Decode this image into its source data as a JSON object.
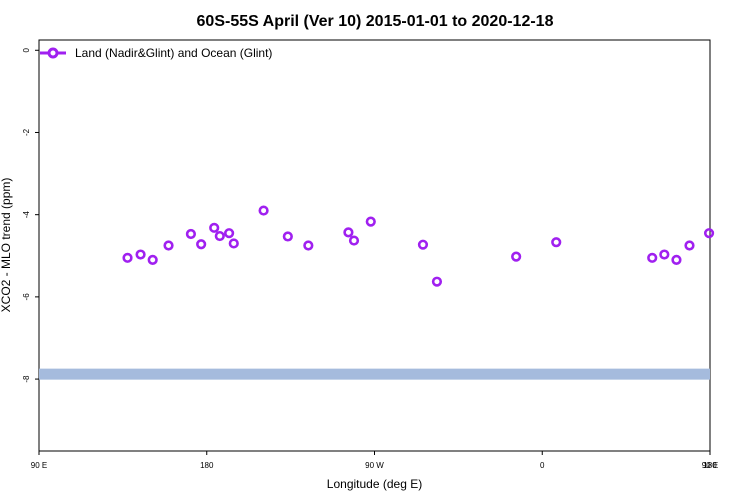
{
  "chart_data": {
    "type": "scatter",
    "title": "60S-55S April (Ver 10)   2015-01-01 to 2020-12-18",
    "xlabel": "Longitude (deg E)",
    "ylabel": "XCO2 - MLO trend (ppm)",
    "xlim": [
      90,
      450
    ],
    "ylim": [
      -9.75,
      0.25
    ],
    "x_ticks": [
      {
        "value": 90,
        "label": "90 E"
      },
      {
        "value": 180,
        "label": "180"
      },
      {
        "value": 270,
        "label": "90 W"
      },
      {
        "value": 360,
        "label": "0"
      },
      {
        "value": 450,
        "label": "90 E"
      }
    ],
    "x_ticks_extra": [
      {
        "value": 540,
        "label": "180"
      }
    ],
    "y_ticks": [
      0,
      -2,
      -4,
      -6,
      -8
    ],
    "grid": false,
    "legend": {
      "placement": "top-left",
      "entries": [
        "Land (Nadir&Glint) and Ocean (Glint)"
      ]
    },
    "series": [
      {
        "name": "Land (Nadir&Glint) and Ocean (Glint)",
        "color": "#a020f0",
        "points": [
          {
            "x": 137.5,
            "y": -5.05
          },
          {
            "x": 144.5,
            "y": -4.97
          },
          {
            "x": 151.0,
            "y": -5.1
          },
          {
            "x": 159.5,
            "y": -4.75
          },
          {
            "x": 171.5,
            "y": -4.47
          },
          {
            "x": 177.0,
            "y": -4.72
          },
          {
            "x": 184.0,
            "y": -4.32
          },
          {
            "x": 187.0,
            "y": -4.52
          },
          {
            "x": 192.0,
            "y": -4.45
          },
          {
            "x": 194.5,
            "y": -4.7
          },
          {
            "x": 210.5,
            "y": -3.9
          },
          {
            "x": 223.5,
            "y": -4.53
          },
          {
            "x": 234.5,
            "y": -4.75
          },
          {
            "x": 256.0,
            "y": -4.43
          },
          {
            "x": 259.0,
            "y": -4.63
          },
          {
            "x": 268.0,
            "y": -4.17
          },
          {
            "x": 296.0,
            "y": -4.73
          },
          {
            "x": 303.5,
            "y": -5.63
          },
          {
            "x": 346.0,
            "y": -5.02
          },
          {
            "x": 367.5,
            "y": -4.67
          },
          {
            "x": 419.0,
            "y": -5.05
          },
          {
            "x": 425.5,
            "y": -4.97
          },
          {
            "x": 432.0,
            "y": -5.1
          },
          {
            "x": 439.0,
            "y": -4.75
          },
          {
            "x": 449.5,
            "y": -4.45
          }
        ]
      },
      {
        "color": "#a5bbdd",
        "band": {
          "x_from": 90,
          "x_to": 450,
          "y": -7.88
        }
      }
    ]
  }
}
